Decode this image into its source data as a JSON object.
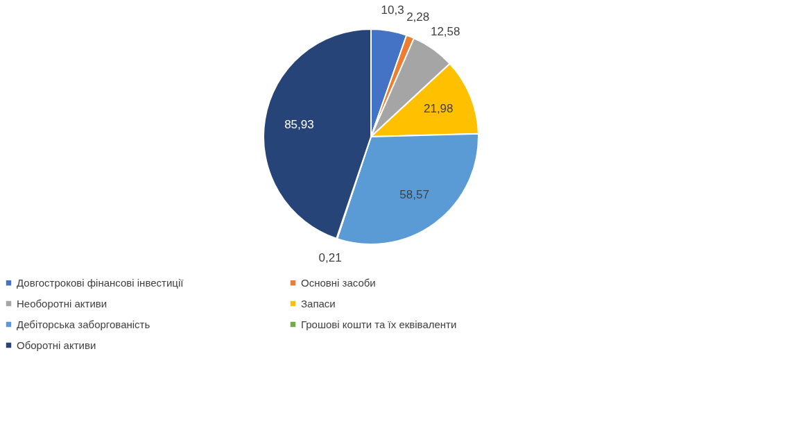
{
  "chart_data": {
    "type": "pie",
    "categories": [
      "Довгострокові фінансові інвестиції",
      "Основні засоби",
      "Необоротні активи",
      "Запаси",
      "Дебіторська заборгованість",
      "Грошові кошти та їх еквіваленти",
      "Оборотні активи"
    ],
    "values": [
      10.3,
      2.28,
      12.58,
      21.98,
      58.57,
      0.21,
      85.93
    ],
    "value_labels": [
      "10,3",
      "2,28",
      "12,58",
      "21,98",
      "58,57",
      "0,21",
      "85,93"
    ],
    "colors": [
      "#4472c4",
      "#ed7d31",
      "#a5a5a5",
      "#ffc000",
      "#5b9bd5",
      "#70ad47",
      "#264478"
    ],
    "legend": "bottom"
  }
}
